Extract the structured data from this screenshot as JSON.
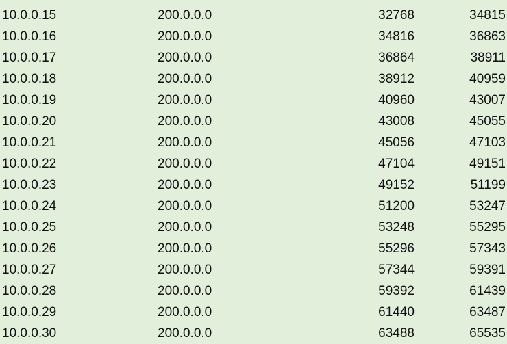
{
  "background_color": "#e2efda",
  "rows": [
    [
      "10.0.0.15",
      "200.0.0.0",
      "32768",
      "34815"
    ],
    [
      "10.0.0.16",
      "200.0.0.0",
      "34816",
      "36863"
    ],
    [
      "10.0.0.17",
      "200.0.0.0",
      "36864",
      "38911"
    ],
    [
      "10.0.0.18",
      "200.0.0.0",
      "38912",
      "40959"
    ],
    [
      "10.0.0.19",
      "200.0.0.0",
      "40960",
      "43007"
    ],
    [
      "10.0.0.20",
      "200.0.0.0",
      "43008",
      "45055"
    ],
    [
      "10.0.0.21",
      "200.0.0.0",
      "45056",
      "47103"
    ],
    [
      "10.0.0.22",
      "200.0.0.0",
      "47104",
      "49151"
    ],
    [
      "10.0.0.23",
      "200.0.0.0",
      "49152",
      "51199"
    ],
    [
      "10.0.0.24",
      "200.0.0.0",
      "51200",
      "53247"
    ],
    [
      "10.0.0.25",
      "200.0.0.0",
      "53248",
      "55295"
    ],
    [
      "10.0.0.26",
      "200.0.0.0",
      "55296",
      "57343"
    ],
    [
      "10.0.0.27",
      "200.0.0.0",
      "57344",
      "59391"
    ],
    [
      "10.0.0.28",
      "200.0.0.0",
      "59392",
      "61439"
    ],
    [
      "10.0.0.29",
      "200.0.0.0",
      "61440",
      "63487"
    ],
    [
      "10.0.0.30",
      "200.0.0.0",
      "63488",
      "65535"
    ]
  ]
}
